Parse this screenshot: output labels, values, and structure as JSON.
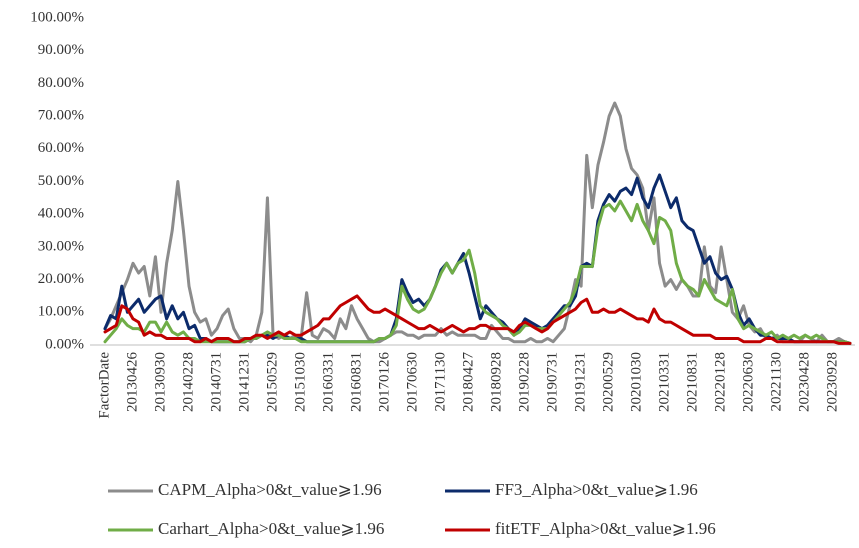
{
  "chart_data": {
    "type": "line",
    "categories": [
      "FactorDate",
      null,
      null,
      null,
      null,
      "20130426",
      null,
      null,
      null,
      null,
      "20130930",
      null,
      null,
      null,
      null,
      "20140228",
      null,
      null,
      null,
      null,
      "20140731",
      null,
      null,
      null,
      null,
      "20141231",
      null,
      null,
      null,
      null,
      "20150529",
      null,
      null,
      null,
      null,
      "20151030",
      null,
      null,
      null,
      null,
      "20160331",
      null,
      null,
      null,
      null,
      "20160831",
      null,
      null,
      null,
      null,
      "20170126",
      null,
      null,
      null,
      null,
      "20170630",
      null,
      null,
      null,
      null,
      "20171130",
      null,
      null,
      null,
      null,
      "20180427",
      null,
      null,
      null,
      null,
      "20180928",
      null,
      null,
      null,
      null,
      "20190228",
      null,
      null,
      null,
      null,
      "20190731",
      null,
      null,
      null,
      null,
      "20191231",
      null,
      null,
      null,
      null,
      "20200529",
      null,
      null,
      null,
      null,
      "20201030",
      null,
      null,
      null,
      null,
      "20210331",
      null,
      null,
      null,
      null,
      "20210831",
      null,
      null,
      null,
      null,
      "20220128",
      null,
      null,
      null,
      null,
      "20220630",
      null,
      null,
      null,
      null,
      "20221130",
      null,
      null,
      null,
      null,
      "20230428",
      null,
      null,
      null,
      null,
      "20230928",
      null,
      null,
      null
    ],
    "series": [
      {
        "name": "CAPM_Alpha>0&t_value⩾1.96",
        "color": "#8c8c8c",
        "values": [
          5,
          8,
          12,
          16,
          20,
          25,
          22,
          24,
          15,
          27,
          10,
          25,
          35,
          50,
          35,
          18,
          10,
          7,
          8,
          3,
          5,
          9,
          11,
          5,
          2,
          2,
          1,
          3,
          10,
          45,
          3,
          2,
          3,
          2,
          3,
          2,
          16,
          3,
          2,
          5,
          4,
          2,
          8,
          5,
          12,
          8,
          5,
          2,
          1,
          1,
          2,
          3,
          4,
          4,
          3,
          3,
          2,
          3,
          3,
          3,
          5,
          3,
          4,
          3,
          3,
          3,
          3,
          2,
          2,
          6,
          4,
          2,
          2,
          1,
          1,
          1,
          2,
          1,
          1,
          2,
          1,
          3,
          5,
          12,
          20,
          18,
          58,
          42,
          55,
          62,
          70,
          74,
          70,
          60,
          54,
          52,
          48,
          35,
          45,
          25,
          18,
          20,
          17,
          20,
          18,
          15,
          15,
          30,
          18,
          16,
          30,
          20,
          10,
          8,
          12,
          6,
          4,
          5,
          2,
          2,
          3,
          1,
          1,
          1,
          1,
          3,
          2,
          1,
          3,
          1,
          1,
          2,
          1,
          0.5
        ]
      },
      {
        "name": "FF3_Alpha>0&t_value⩾1.96",
        "color": "#0c2b6b",
        "values": [
          5,
          9,
          8,
          18,
          10,
          12,
          14,
          10,
          12,
          14,
          15,
          8,
          12,
          8,
          10,
          5,
          6,
          2,
          2,
          1,
          1,
          1,
          1,
          1,
          1,
          1,
          2,
          2,
          3,
          3,
          2,
          3,
          3,
          2,
          2,
          2,
          1,
          1,
          1,
          1,
          1,
          1,
          1,
          1,
          1,
          1,
          1,
          1,
          1,
          2,
          2,
          3,
          8,
          20,
          16,
          13,
          14,
          12,
          14,
          18,
          23,
          25,
          22,
          25,
          28,
          22,
          15,
          8,
          12,
          10,
          8,
          7,
          5,
          3,
          5,
          8,
          7,
          6,
          5,
          6,
          8,
          10,
          12,
          12,
          15,
          24,
          25,
          24,
          38,
          43,
          46,
          44,
          47,
          48,
          46,
          51,
          45,
          42,
          48,
          52,
          47,
          42,
          45,
          38,
          36,
          35,
          30,
          25,
          27,
          22,
          20,
          21,
          17,
          10,
          6,
          8,
          5,
          3,
          3,
          2,
          2,
          2,
          2,
          1,
          1,
          1,
          1,
          1,
          1,
          1,
          1,
          1,
          1,
          0.5
        ]
      },
      {
        "name": "Carhart_Alpha>0&t_value⩾1.96",
        "color": "#70ad47",
        "values": [
          1,
          3,
          5,
          8,
          6,
          5,
          5,
          4,
          7,
          7,
          4,
          7,
          4,
          3,
          4,
          2,
          2,
          1,
          1,
          1,
          1,
          1,
          1,
          1,
          1,
          1,
          2,
          2,
          3,
          4,
          3,
          3,
          2,
          2,
          2,
          1,
          1,
          1,
          1,
          1,
          1,
          1,
          1,
          1,
          1,
          1,
          1,
          1,
          1,
          2,
          2,
          3,
          6,
          18,
          14,
          11,
          10,
          11,
          14,
          18,
          22,
          25,
          22,
          25,
          26,
          29,
          22,
          12,
          10,
          9,
          8,
          6,
          5,
          3,
          4,
          6,
          6,
          5,
          5,
          5,
          7,
          9,
          11,
          13,
          17,
          24,
          24,
          24,
          36,
          42,
          43,
          41,
          44,
          41,
          38,
          43,
          38,
          35,
          31,
          39,
          38,
          35,
          25,
          20,
          18,
          17,
          15,
          20,
          17,
          14,
          13,
          12,
          17,
          8,
          5,
          6,
          5,
          4,
          3,
          4,
          2,
          3,
          2,
          3,
          2,
          3,
          2,
          3,
          2,
          1,
          1,
          1,
          1,
          0.5
        ]
      },
      {
        "name": "fitETF_Alpha>0&t_value⩾1.96",
        "color": "#c00000",
        "values": [
          4,
          5,
          6,
          12,
          11,
          8,
          7,
          3,
          4,
          3,
          3,
          2,
          2,
          2,
          2,
          2,
          1,
          1,
          2,
          1,
          2,
          2,
          2,
          1,
          1,
          2,
          2,
          3,
          3,
          2,
          3,
          4,
          3,
          4,
          3,
          3,
          4,
          5,
          6,
          8,
          8,
          10,
          12,
          13,
          14,
          15,
          13,
          11,
          10,
          10,
          11,
          10,
          9,
          8,
          7,
          6,
          5,
          5,
          6,
          5,
          4,
          5,
          6,
          5,
          4,
          5,
          5,
          6,
          6,
          5,
          5,
          5,
          5,
          4,
          6,
          7,
          6,
          5,
          4,
          5,
          7,
          8,
          9,
          10,
          11,
          13,
          14,
          10,
          10,
          11,
          10,
          10,
          11,
          10,
          9,
          8,
          8,
          7,
          11,
          8,
          7,
          7,
          6,
          5,
          4,
          3,
          3,
          3,
          3,
          2,
          2,
          2,
          2,
          2,
          1,
          1,
          1,
          1,
          2,
          2,
          1,
          1,
          1,
          1,
          1,
          1,
          1,
          1,
          1,
          1,
          1,
          0.5,
          0.5,
          0.5
        ]
      }
    ],
    "ylim": [
      0,
      100
    ],
    "yticks": [
      {
        "value": 0,
        "label": "0.00%"
      },
      {
        "value": 10,
        "label": "10.00%"
      },
      {
        "value": 20,
        "label": "20.00%"
      },
      {
        "value": 30,
        "label": "30.00%"
      },
      {
        "value": 40,
        "label": "40.00%"
      },
      {
        "value": 50,
        "label": "50.00%"
      },
      {
        "value": 60,
        "label": "60.00%"
      },
      {
        "value": 70,
        "label": "70.00%"
      },
      {
        "value": 80,
        "label": "80.00%"
      },
      {
        "value": 90,
        "label": "90.00%"
      },
      {
        "value": 100,
        "label": "100.00%"
      }
    ],
    "grid": false,
    "legend": "bottom"
  }
}
